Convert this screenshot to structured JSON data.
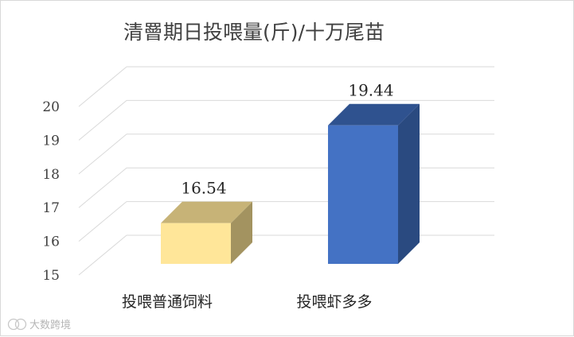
{
  "chart_data": {
    "type": "bar",
    "title": "清罾期日投喂量(斤)/十万尾苗",
    "categories": [
      "投喂普通饲料",
      "投喂虾多多"
    ],
    "values": [
      16.54,
      19.44
    ],
    "data_labels": [
      "16.54",
      "19.44"
    ],
    "ylim": [
      15,
      20
    ],
    "yticks": [
      "15",
      "16",
      "17",
      "18",
      "19",
      "20"
    ],
    "xlabel": "",
    "ylabel": "",
    "grid": true,
    "legend": "none",
    "style": "3d-column",
    "colors": {
      "bar1_front": "#ffe699",
      "bar1_top": "#c7b377",
      "bar1_side": "#a39360",
      "bar2_front": "#4472c4",
      "bar2_top": "#2f528f",
      "bar2_side": "#2a4a80",
      "grid": "#d9d9d9"
    }
  },
  "watermark": {
    "icon": "logo-badge-icon",
    "text": "大数跨境"
  }
}
